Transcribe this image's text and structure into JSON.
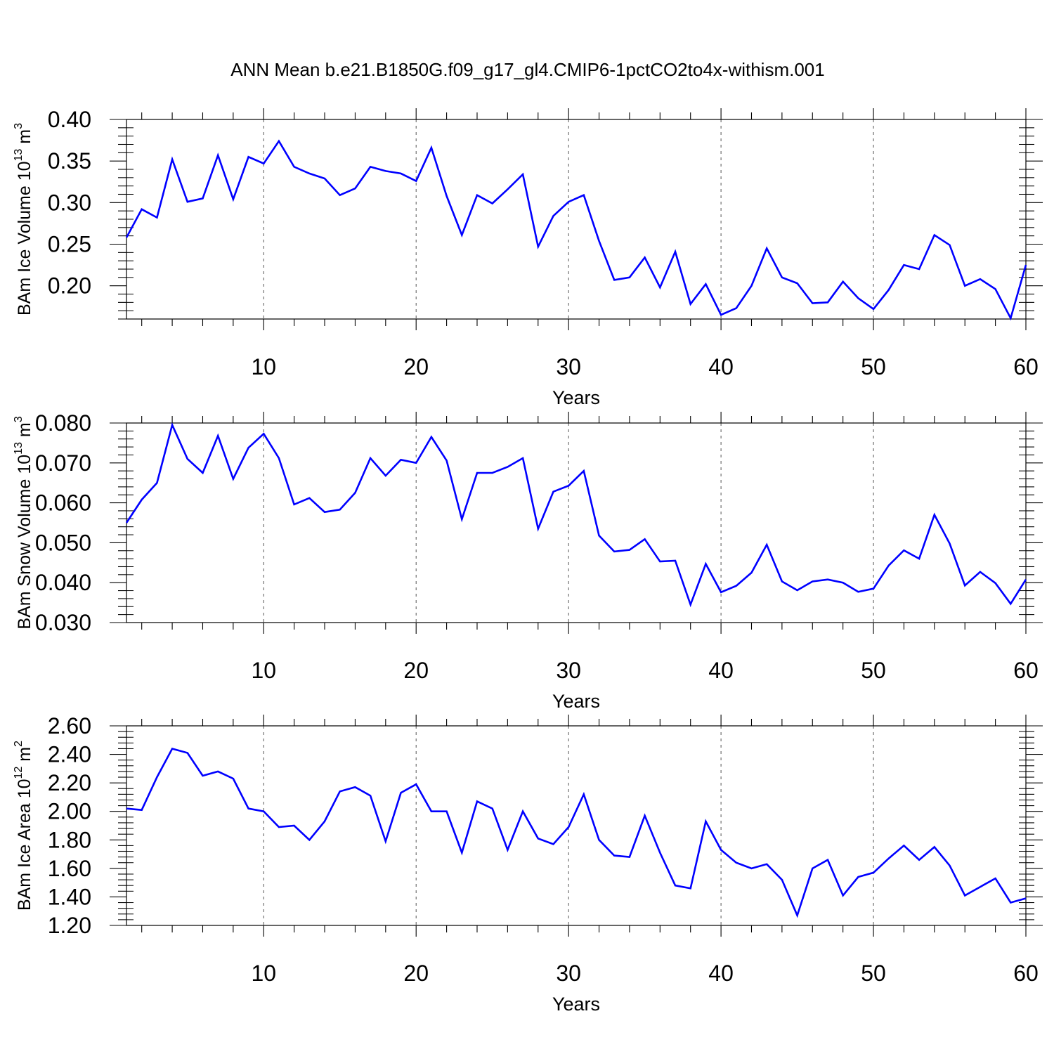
{
  "page_title": "ANN Mean b.e21.B1850G.f09_g17_gl4.CMIP6-1pctCO2to4x-withism.001",
  "line_color": "#0000ff",
  "chart_data": [
    {
      "type": "line",
      "title": "",
      "xlabel": "Years",
      "ylabel": {
        "text": "BAm Ice Volume 10",
        "exponent": "13",
        "unit": " m",
        "unit_exponent": "3"
      },
      "xlim": [
        1,
        60
      ],
      "ylim": [
        0.16,
        0.4
      ],
      "x_ticks": [
        "10",
        "20",
        "30",
        "40",
        "50",
        "60"
      ],
      "y_ticks": [
        "0.20",
        "0.25",
        "0.30",
        "0.35",
        "0.40"
      ],
      "grid": "dashed vertical at major x ticks",
      "series": [
        {
          "values": [
            0.258,
            0.292,
            0.282,
            0.352,
            0.301,
            0.305,
            0.357,
            0.304,
            0.355,
            0.347,
            0.374,
            0.343,
            0.335,
            0.329,
            0.309,
            0.317,
            0.343,
            0.338,
            0.335,
            0.326,
            0.366,
            0.308,
            0.261,
            0.309,
            0.299,
            0.316,
            0.334,
            0.247,
            0.284,
            0.301,
            0.309,
            0.254,
            0.207,
            0.21,
            0.234,
            0.198,
            0.241,
            0.178,
            0.202,
            0.165,
            0.173,
            0.2,
            0.245,
            0.21,
            0.203,
            0.179,
            0.18,
            0.205,
            0.185,
            0.172,
            0.195,
            0.225,
            0.22,
            0.261,
            0.249,
            0.2,
            0.208,
            0.196,
            0.161,
            0.225
          ]
        }
      ]
    },
    {
      "type": "line",
      "title": "",
      "xlabel": "Years",
      "ylabel": {
        "text": "BAm Snow Volume 10",
        "exponent": "13",
        "unit": " m",
        "unit_exponent": "3"
      },
      "xlim": [
        1,
        60
      ],
      "ylim": [
        0.03,
        0.08
      ],
      "x_ticks": [
        "10",
        "20",
        "30",
        "40",
        "50",
        "60"
      ],
      "y_ticks": [
        "0.030",
        "0.040",
        "0.050",
        "0.060",
        "0.070",
        "0.080"
      ],
      "grid": "dashed vertical at major x ticks",
      "series": [
        {
          "values": [
            0.055,
            0.0608,
            0.065,
            0.0795,
            0.071,
            0.0675,
            0.0768,
            0.066,
            0.0738,
            0.0773,
            0.0712,
            0.0596,
            0.0612,
            0.0577,
            0.0583,
            0.0625,
            0.0712,
            0.0668,
            0.0708,
            0.07,
            0.0765,
            0.0706,
            0.0559,
            0.0675,
            0.0675,
            0.069,
            0.0712,
            0.0535,
            0.0628,
            0.0643,
            0.068,
            0.0518,
            0.0478,
            0.0482,
            0.0509,
            0.0453,
            0.0455,
            0.0345,
            0.0447,
            0.0376,
            0.0392,
            0.0425,
            0.0495,
            0.0403,
            0.0381,
            0.0403,
            0.0408,
            0.04,
            0.0377,
            0.0385,
            0.0443,
            0.0481,
            0.046,
            0.057,
            0.0498,
            0.0393,
            0.0427,
            0.0399,
            0.0347,
            0.0408
          ]
        }
      ]
    },
    {
      "type": "line",
      "title": "",
      "xlabel": "Years",
      "ylabel": {
        "text": "BAm Ice Area 10",
        "exponent": "12",
        "unit": " m",
        "unit_exponent": "2"
      },
      "xlim": [
        1,
        60
      ],
      "ylim": [
        1.2,
        2.6
      ],
      "x_ticks": [
        "10",
        "20",
        "30",
        "40",
        "50",
        "60"
      ],
      "y_ticks": [
        "1.20",
        "1.40",
        "1.60",
        "1.80",
        "2.00",
        "2.20",
        "2.40",
        "2.60"
      ],
      "grid": "dashed vertical at major x ticks",
      "series": [
        {
          "values": [
            2.02,
            2.01,
            2.24,
            2.44,
            2.41,
            2.25,
            2.28,
            2.23,
            2.02,
            2.0,
            1.89,
            1.9,
            1.8,
            1.93,
            2.14,
            2.17,
            2.11,
            1.79,
            2.13,
            2.19,
            2.0,
            2.0,
            1.71,
            2.07,
            2.02,
            1.73,
            2.0,
            1.81,
            1.77,
            1.89,
            2.12,
            1.8,
            1.69,
            1.68,
            1.97,
            1.71,
            1.48,
            1.46,
            1.93,
            1.73,
            1.64,
            1.6,
            1.63,
            1.52,
            1.27,
            1.6,
            1.66,
            1.41,
            1.54,
            1.57,
            1.67,
            1.76,
            1.66,
            1.75,
            1.62,
            1.41,
            1.47,
            1.53,
            1.36,
            1.39
          ]
        }
      ]
    }
  ]
}
